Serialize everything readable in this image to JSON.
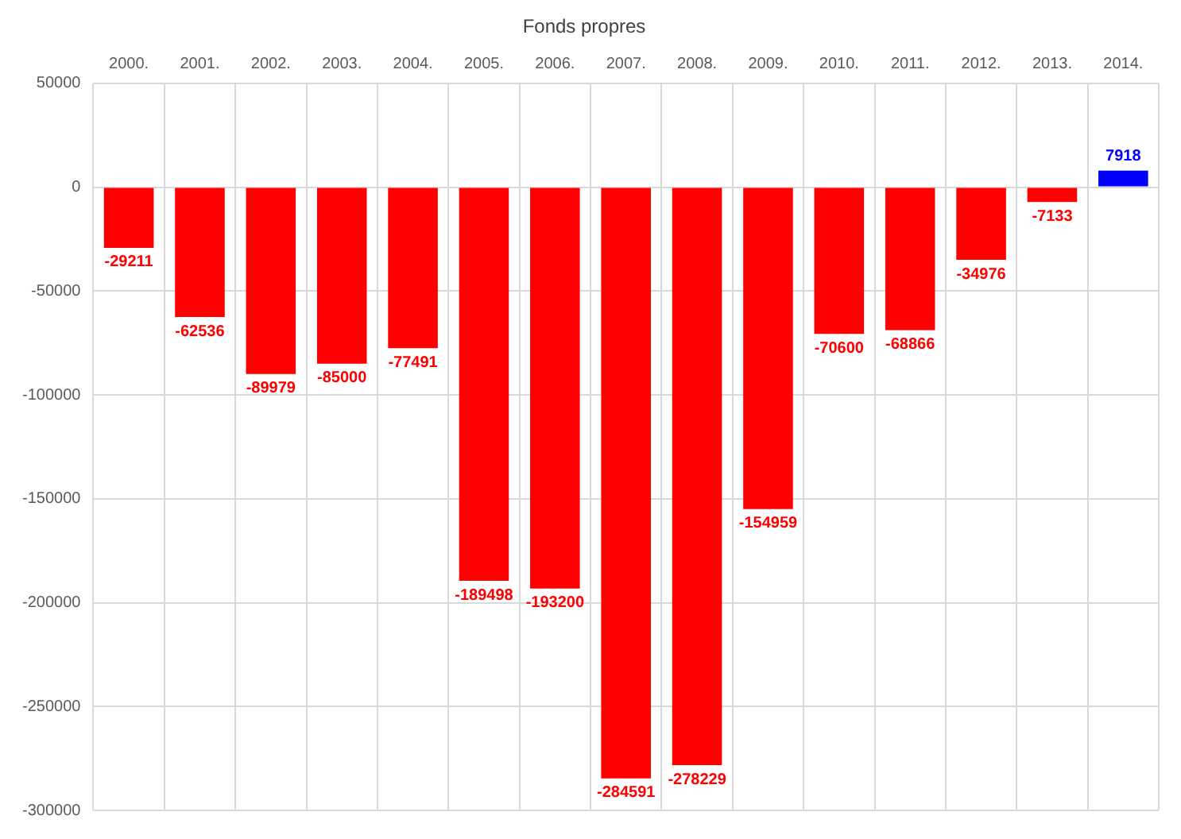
{
  "chart_data": {
    "type": "bar",
    "title": "Fonds propres",
    "categories": [
      "2000.",
      "2001.",
      "2002.",
      "2003.",
      "2004.",
      "2005.",
      "2006.",
      "2007.",
      "2008.",
      "2009.",
      "2010.",
      "2011.",
      "2012.",
      "2013.",
      "2014."
    ],
    "values": [
      -29211,
      -62536,
      -89979,
      -85000,
      -77491,
      -189498,
      -193200,
      -284591,
      -278229,
      -154959,
      -70600,
      -68866,
      -34976,
      -7133,
      7918
    ],
    "colors": [
      "#ff0000",
      "#ff0000",
      "#ff0000",
      "#ff0000",
      "#ff0000",
      "#ff0000",
      "#ff0000",
      "#ff0000",
      "#ff0000",
      "#ff0000",
      "#ff0000",
      "#ff0000",
      "#ff0000",
      "#ff0000",
      "#0000ff"
    ],
    "ylim": [
      -300000,
      50000
    ],
    "yticks": [
      -300000,
      -250000,
      -200000,
      -150000,
      -100000,
      -50000,
      0,
      50000
    ],
    "grid": true,
    "data_labels": true
  }
}
